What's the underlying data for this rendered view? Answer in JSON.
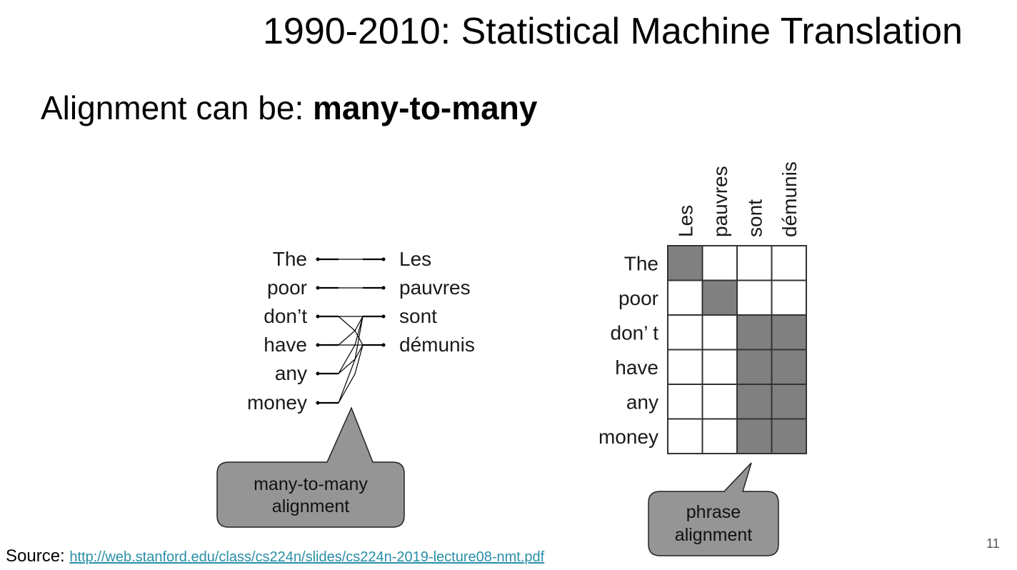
{
  "slide": {
    "title": "1990-2010: Statistical Machine Translation",
    "subtitle_prefix": "Alignment can be: ",
    "subtitle_bold": "many-to-many",
    "page_number": "11"
  },
  "footer": {
    "source_label": "Source: ",
    "source_url": "http://web.stanford.edu/class/cs224n/slides/cs224n-2019-lecture08-nmt.pdf"
  },
  "left_diagram": {
    "english": [
      "The",
      "poor",
      "don’t",
      "have",
      "any",
      "money"
    ],
    "french": [
      "Les",
      "pauvres",
      "sont",
      "démunis"
    ],
    "links": [
      [
        0,
        0
      ],
      [
        1,
        1
      ],
      [
        2,
        2
      ],
      [
        2,
        3
      ],
      [
        3,
        2
      ],
      [
        3,
        3
      ],
      [
        4,
        2
      ],
      [
        4,
        3
      ],
      [
        5,
        2
      ],
      [
        5,
        3
      ]
    ],
    "callout": [
      "many-to-many",
      "alignment"
    ]
  },
  "right_diagram": {
    "columns": [
      "Les",
      "pauvres",
      "sont",
      "démunis"
    ],
    "rows": [
      "The",
      "poor",
      "don’ t",
      "have",
      "any",
      "money"
    ],
    "matrix": [
      [
        1,
        0,
        0,
        0
      ],
      [
        0,
        1,
        0,
        0
      ],
      [
        0,
        0,
        1,
        1
      ],
      [
        0,
        0,
        1,
        1
      ],
      [
        0,
        0,
        1,
        1
      ],
      [
        0,
        0,
        1,
        1
      ]
    ],
    "callout": [
      "phrase",
      "alignment"
    ]
  },
  "colors": {
    "filled_cell": "#808080",
    "callout_fill": "#959595",
    "link": "#2a8fa8"
  }
}
